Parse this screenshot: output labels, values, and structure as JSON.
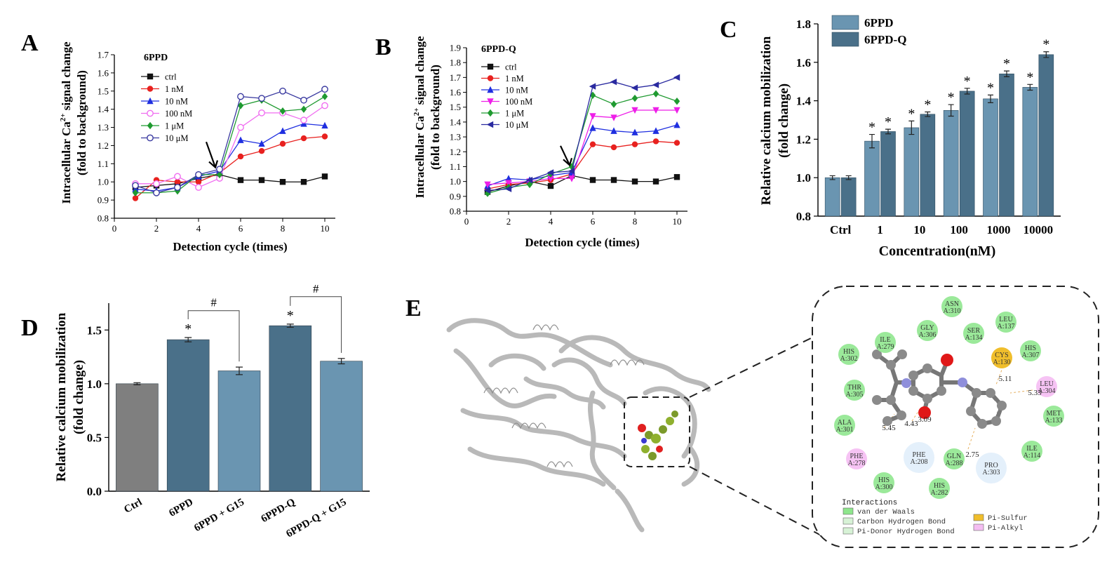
{
  "panels": {
    "A": {
      "letter": "A",
      "chart_data": {
        "type": "line",
        "title": "6PPD",
        "xlabel": "Detection cycle (times)",
        "ylabel": "Intracellular Ca²⁺ signal change (fold to background)",
        "ylabel_line1": "Intracellular Ca",
        "ylabel_sup": "2+",
        "ylabel_line1_end": " signal change",
        "ylabel_line2": "(fold to background)",
        "xlim": [
          0,
          10.5
        ],
        "ylim": [
          0.8,
          1.7
        ],
        "xticks": [
          0,
          2,
          4,
          6,
          8,
          10
        ],
        "yticks": [
          0.8,
          0.9,
          1.0,
          1.1,
          1.2,
          1.3,
          1.4,
          1.5,
          1.6,
          1.7
        ],
        "x": [
          1,
          2,
          3,
          4,
          5,
          6,
          7,
          8,
          9,
          10
        ],
        "series": [
          {
            "name": "ctrl",
            "color": "#111111",
            "marker": "square",
            "values": [
              0.97,
              0.98,
              0.99,
              1.02,
              1.04,
              1.01,
              1.01,
              1.0,
              1.0,
              1.03
            ]
          },
          {
            "name": "1 nM",
            "color": "#e8211f",
            "marker": "circle",
            "values": [
              0.91,
              1.01,
              1.0,
              1.0,
              1.05,
              1.14,
              1.17,
              1.21,
              1.24,
              1.25
            ]
          },
          {
            "name": "10 nM",
            "color": "#1f2fe0",
            "marker": "triangle",
            "values": [
              0.96,
              0.95,
              0.97,
              1.03,
              1.06,
              1.23,
              1.21,
              1.28,
              1.32,
              1.31
            ]
          },
          {
            "name": "100 nM",
            "color": "#f06ef0",
            "marker": "circle-open",
            "values": [
              0.99,
              0.99,
              1.03,
              0.97,
              1.02,
              1.3,
              1.38,
              1.38,
              1.34,
              1.42
            ]
          },
          {
            "name": "1 μM",
            "color": "#1f9a30",
            "marker": "diamond",
            "values": [
              0.94,
              0.94,
              0.95,
              1.04,
              1.04,
              1.42,
              1.45,
              1.39,
              1.4,
              1.47
            ]
          },
          {
            "name": "10 μM",
            "color": "#3a3aa0",
            "marker": "circle-open",
            "values": [
              0.98,
              0.94,
              0.97,
              1.04,
              1.07,
              1.47,
              1.46,
              1.5,
              1.45,
              1.51
            ]
          }
        ],
        "arrow_at": {
          "x": 4.7,
          "y_from": 1.22,
          "y_to": 1.08
        }
      }
    },
    "B": {
      "letter": "B",
      "chart_data": {
        "type": "line",
        "title": "6PPD-Q",
        "xlabel": "Detection cycle (times)",
        "ylabel_line1": "Intracellular Ca",
        "ylabel_sup": "2+",
        "ylabel_line1_end": " signal change",
        "ylabel_line2": "(fold to background)",
        "xlim": [
          0,
          10.5
        ],
        "ylim": [
          0.8,
          1.9
        ],
        "xticks": [
          0,
          2,
          4,
          6,
          8,
          10
        ],
        "yticks": [
          0.8,
          0.9,
          1.0,
          1.1,
          1.2,
          1.3,
          1.4,
          1.5,
          1.6,
          1.7,
          1.8,
          1.9
        ],
        "x": [
          1,
          2,
          3,
          4,
          5,
          6,
          7,
          8,
          9,
          10
        ],
        "series": [
          {
            "name": "ctrl",
            "color": "#111111",
            "marker": "square",
            "values": [
              0.93,
              0.97,
              1.0,
              0.97,
              1.04,
              1.01,
              1.01,
              1.0,
              1.0,
              1.03
            ]
          },
          {
            "name": "1 nM",
            "color": "#e8211f",
            "marker": "circle",
            "values": [
              0.95,
              0.98,
              0.99,
              1.01,
              1.05,
              1.25,
              1.23,
              1.25,
              1.27,
              1.26
            ]
          },
          {
            "name": "10 nM",
            "color": "#1f2fe0",
            "marker": "triangle",
            "values": [
              0.97,
              1.02,
              1.01,
              1.04,
              1.06,
              1.36,
              1.34,
              1.33,
              1.34,
              1.38
            ]
          },
          {
            "name": "100 nM",
            "color": "#ee1fe8",
            "marker": "triangle-down",
            "values": [
              0.98,
              0.99,
              1.0,
              1.02,
              1.02,
              1.44,
              1.43,
              1.48,
              1.48,
              1.48
            ]
          },
          {
            "name": "1 μM",
            "color": "#1f9a30",
            "marker": "diamond",
            "values": [
              0.92,
              0.96,
              0.98,
              1.05,
              1.1,
              1.58,
              1.52,
              1.56,
              1.59,
              1.54
            ]
          },
          {
            "name": "10 μM",
            "color": "#2a2aa0",
            "marker": "triangle-left",
            "values": [
              0.94,
              0.95,
              1.01,
              1.06,
              1.07,
              1.64,
              1.67,
              1.63,
              1.65,
              1.7
            ]
          }
        ],
        "arrow_at": {
          "x": 4.8,
          "y_from": 1.24,
          "y_to": 1.11
        }
      }
    },
    "C": {
      "letter": "C",
      "chart_data": {
        "type": "bar",
        "xlabel": "Concentration(nM)",
        "ylabel_line1": "Relative calcium mobilization",
        "ylabel_line2": "(fold change)",
        "ylim": [
          0.8,
          1.8
        ],
        "yticks": [
          0.8,
          1.0,
          1.2,
          1.4,
          1.6,
          1.8
        ],
        "categories": [
          "Ctrl",
          "1",
          "10",
          "100",
          "1000",
          "10000"
        ],
        "series": [
          {
            "name": "6PPD",
            "color": "#6a95b1",
            "values": [
              1.0,
              1.19,
              1.26,
              1.35,
              1.41,
              1.47
            ],
            "errors": [
              0.01,
              0.035,
              0.035,
              0.03,
              0.02,
              0.015
            ]
          },
          {
            "name": "6PPD-Q",
            "color": "#4a7089",
            "values": [
              1.0,
              1.24,
              1.33,
              1.45,
              1.54,
              1.64
            ],
            "errors": [
              0.01,
              0.012,
              0.012,
              0.015,
              0.015,
              0.015
            ]
          }
        ],
        "significance": [
          [
            false,
            false
          ],
          [
            true,
            true
          ],
          [
            true,
            true
          ],
          [
            true,
            true
          ],
          [
            true,
            true
          ],
          [
            true,
            true
          ]
        ],
        "sig_symbol": "*",
        "legend": "top-left"
      }
    },
    "D": {
      "letter": "D",
      "chart_data": {
        "type": "bar",
        "ylabel_line1": "Relative calcium mobilization",
        "ylabel_line2": "(fold change)",
        "ylim": [
          0.0,
          1.75
        ],
        "yticks": [
          0.0,
          0.5,
          1.0,
          1.5
        ],
        "categories": [
          "Ctrl",
          "6PPD",
          "6PPD + G15",
          "6PPD-Q",
          "6PPD-Q + G15"
        ],
        "values": [
          1.0,
          1.41,
          1.12,
          1.54,
          1.21
        ],
        "errors": [
          0.01,
          0.02,
          0.035,
          0.015,
          0.025
        ],
        "colors": [
          "#7f7f7f",
          "#4a7089",
          "#6a95b1",
          "#4a7089",
          "#6a95b1"
        ],
        "stars": [
          false,
          true,
          false,
          true,
          false
        ],
        "star_symbol": "*",
        "brackets": [
          {
            "from": 1,
            "to": 2,
            "label": "#"
          },
          {
            "from": 3,
            "to": 4,
            "label": "#"
          }
        ]
      }
    },
    "E": {
      "letter": "E",
      "residues": [
        {
          "name": "ASN",
          "id": "A:310",
          "type": "vdw"
        },
        {
          "name": "LEU",
          "id": "A:137",
          "type": "vdw"
        },
        {
          "name": "GLY",
          "id": "A:306",
          "type": "vdw"
        },
        {
          "name": "SER",
          "id": "A:134",
          "type": "vdw"
        },
        {
          "name": "ILE",
          "id": "A:279",
          "type": "vdw"
        },
        {
          "name": "HIS",
          "id": "A:307",
          "type": "vdw"
        },
        {
          "name": "HIS",
          "id": "A:302",
          "type": "vdw"
        },
        {
          "name": "CYS",
          "id": "A:130",
          "type": "sulfur"
        },
        {
          "name": "THR",
          "id": "A:305",
          "type": "vdw"
        },
        {
          "name": "LEU",
          "id": "A:304",
          "type": "alkyl"
        },
        {
          "name": "MET",
          "id": "A:133",
          "type": "vdw"
        },
        {
          "name": "ALA",
          "id": "A:301",
          "type": "vdw"
        },
        {
          "name": "ILE",
          "id": "A:114",
          "type": "vdw"
        },
        {
          "name": "PHE",
          "id": "A:278",
          "type": "alkyl"
        },
        {
          "name": "PHE",
          "id": "A:208",
          "type": "pidonor"
        },
        {
          "name": "GLN",
          "id": "A:288",
          "type": "vdw"
        },
        {
          "name": "PRO",
          "id": "A:303",
          "type": "pidonor"
        },
        {
          "name": "HIS",
          "id": "A:300",
          "type": "vdw"
        },
        {
          "name": "HIS",
          "id": "A:282",
          "type": "vdw"
        }
      ],
      "distances": [
        "5.11",
        "5.33",
        "5.45",
        "4.43",
        "3.09",
        "2.75"
      ],
      "legend_title": "Interactions",
      "legend_items": [
        {
          "label": "van der Waals",
          "color": "#8ee68c"
        },
        {
          "label": "Carbon Hydrogen Bond",
          "color": "#d7f2d6"
        },
        {
          "label": "Pi-Donor Hydrogen Bond",
          "color": "#d7f2d6"
        },
        {
          "label": "Pi-Sulfur",
          "color": "#f0be2c"
        },
        {
          "label": "Pi-Alkyl",
          "color": "#f4bdf2"
        }
      ]
    }
  }
}
